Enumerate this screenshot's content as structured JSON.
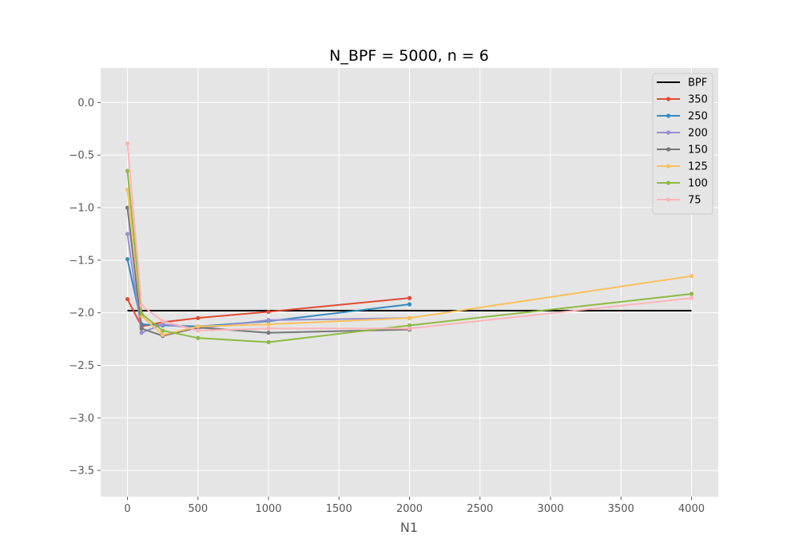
{
  "chart_data": {
    "type": "line",
    "title": "N_BPF = 5000, n = 6",
    "xlabel": "N1",
    "ylabel": "",
    "xlim": [
      -190,
      4190
    ],
    "ylim": [
      -3.75,
      0.33
    ],
    "xticks": [
      0,
      500,
      1000,
      1500,
      2000,
      2500,
      3000,
      3500,
      4000
    ],
    "yticks": [
      0.0,
      -0.5,
      -1.0,
      -1.5,
      -2.0,
      -2.5,
      -3.0,
      -3.5
    ],
    "xtick_labels": [
      "0",
      "500",
      "1000",
      "1500",
      "2000",
      "2500",
      "3000",
      "3500",
      "4000"
    ],
    "ytick_labels": [
      "0.0",
      "−0.5",
      "−1.0",
      "−1.5",
      "−2.0",
      "−2.5",
      "−3.0",
      "−3.5"
    ],
    "grid": true,
    "legend_position": "top-right",
    "background": "#e5e5e5",
    "series": [
      {
        "name": "BPF",
        "color": "#000000",
        "marker": false,
        "x": [
          0,
          4000
        ],
        "y": [
          -1.98,
          -1.98
        ]
      },
      {
        "name": "350",
        "color": "#e24a33",
        "marker": true,
        "x": [
          0,
          100,
          250,
          500,
          1000,
          2000
        ],
        "y": [
          -1.87,
          -2.13,
          -2.09,
          -2.05,
          -1.99,
          -1.86
        ]
      },
      {
        "name": "250",
        "color": "#348abd",
        "marker": true,
        "x": [
          0,
          100,
          250,
          500,
          1000,
          2000
        ],
        "y": [
          -1.49,
          -2.11,
          -2.12,
          -2.13,
          -2.08,
          -1.92
        ]
      },
      {
        "name": "200",
        "color": "#988ed5",
        "marker": true,
        "x": [
          0,
          100,
          250,
          500,
          1000,
          2000
        ],
        "y": [
          -1.25,
          -2.19,
          -2.11,
          -2.15,
          -2.07,
          -2.05
        ]
      },
      {
        "name": "150",
        "color": "#777777",
        "marker": true,
        "x": [
          0,
          100,
          250,
          500,
          1000,
          2000
        ],
        "y": [
          -1.0,
          -2.15,
          -2.22,
          -2.14,
          -2.19,
          -2.16
        ]
      },
      {
        "name": "125",
        "color": "#fbc15e",
        "marker": true,
        "x": [
          0,
          100,
          250,
          500,
          1000,
          2000,
          4000
        ],
        "y": [
          -0.83,
          -2.03,
          -2.21,
          -2.13,
          -2.11,
          -2.05,
          -1.65
        ]
      },
      {
        "name": "100",
        "color": "#8eba42",
        "marker": true,
        "x": [
          0,
          100,
          250,
          500,
          1000,
          2000,
          4000
        ],
        "y": [
          -0.65,
          -2.01,
          -2.17,
          -2.24,
          -2.28,
          -2.12,
          -1.82
        ]
      },
      {
        "name": "75",
        "color": "#ffb5b8",
        "marker": true,
        "x": [
          0,
          100,
          250,
          500,
          1000,
          2000,
          4000
        ],
        "y": [
          -0.39,
          -1.93,
          -2.08,
          -2.17,
          -2.15,
          -2.15,
          -1.86
        ]
      }
    ]
  }
}
